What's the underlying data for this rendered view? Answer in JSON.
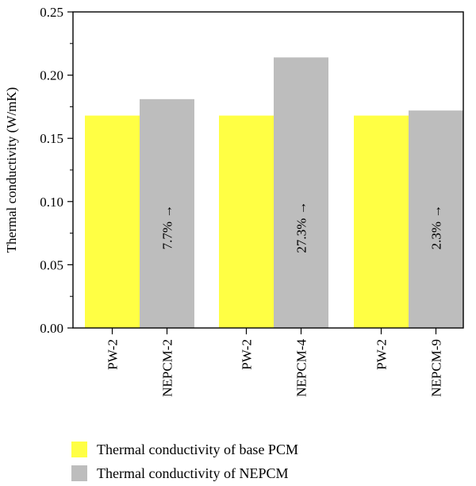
{
  "chart_data": {
    "type": "bar",
    "ylabel": "Thermal conductivity (W/mK)",
    "ylim": [
      0,
      0.25
    ],
    "yticks": [
      "0.00",
      "0.05",
      "0.10",
      "0.15",
      "0.20",
      "0.25"
    ],
    "groups": [
      {
        "base_label": "PW-2",
        "nepcm_label": "NEPCM-2",
        "base_value": 0.168,
        "nepcm_value": 0.181,
        "annotation": "7.7% →"
      },
      {
        "base_label": "PW-2",
        "nepcm_label": "NEPCM-4",
        "base_value": 0.168,
        "nepcm_value": 0.214,
        "annotation": "27.3% →"
      },
      {
        "base_label": "PW-2",
        "nepcm_label": "NEPCM-9",
        "base_value": 0.168,
        "nepcm_value": 0.172,
        "annotation": "2.3% →"
      }
    ],
    "series": [
      {
        "name": "Thermal conductivity of base PCM",
        "color": "#ffff44"
      },
      {
        "name": "Thermal conductivity of NEPCM",
        "color": "#bdbdbd"
      }
    ],
    "legend_position": "bottom-left"
  }
}
